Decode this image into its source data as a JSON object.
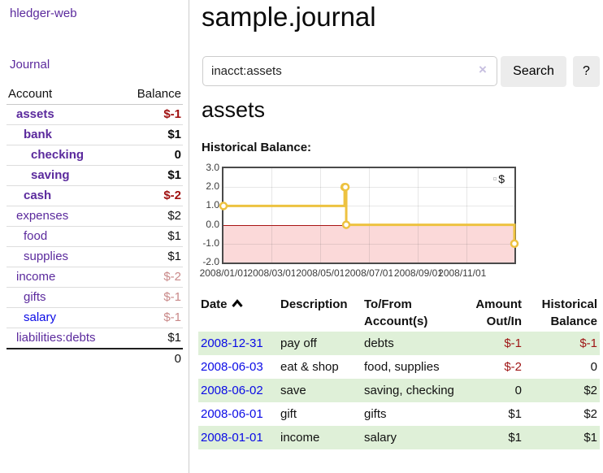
{
  "app_title": "hledger-web",
  "sidebar": {
    "journal_link": "Journal",
    "accounts": {
      "col_account": "Account",
      "col_balance": "Balance",
      "rows": [
        {
          "name": "assets",
          "balance": "$-1"
        },
        {
          "name": "bank",
          "balance": "$1"
        },
        {
          "name": "checking",
          "balance": "0"
        },
        {
          "name": "saving",
          "balance": "$1"
        },
        {
          "name": "cash",
          "balance": "$-2"
        },
        {
          "name": "expenses",
          "balance": "$2"
        },
        {
          "name": "food",
          "balance": "$1"
        },
        {
          "name": "supplies",
          "balance": "$1"
        },
        {
          "name": "income",
          "balance": "$-2"
        },
        {
          "name": "gifts",
          "balance": "$-1"
        },
        {
          "name": "salary",
          "balance": "$-1"
        },
        {
          "name": "liabilities:debts",
          "balance": "$1"
        }
      ],
      "total": "0"
    }
  },
  "main": {
    "title": "sample.journal",
    "search": {
      "value": "inacct:assets",
      "clear_glyph": "×",
      "search_button": "Search",
      "help_button": "?"
    },
    "account_heading": "assets",
    "section_label": "Historical Balance:"
  },
  "chart_data": {
    "type": "line",
    "step": true,
    "title": "Historical Balance",
    "series": [
      {
        "name": "$",
        "color": "#EDC240",
        "points": [
          [
            "2008-01-01",
            1
          ],
          [
            "2008-06-01",
            2
          ],
          [
            "2008-06-02",
            2
          ],
          [
            "2008-06-03",
            0
          ],
          [
            "2008-12-31",
            -1
          ]
        ]
      }
    ],
    "xlim": [
      "2008-01-01",
      "2008-12-31"
    ],
    "ylim": [
      -2,
      3
    ],
    "ytick_labels": [
      "3.0",
      "2.0",
      "1.0",
      "0.0",
      "-1.0",
      "-2.0"
    ],
    "xtick_labels": [
      "2008/01/01",
      "2008/03/01",
      "2008/05/01",
      "2008/07/01",
      "2008/09/01",
      "2008/11/01"
    ],
    "grid": true,
    "legend_position": "top-right",
    "negative_region_fill": "#fbd9d9",
    "zero_line_color": "#a91414"
  },
  "register": {
    "headers": {
      "date": "Date",
      "description": "Description",
      "accounts": "To/From Account(s)",
      "amount": "Amount Out/In",
      "balance": "Historical Balance"
    },
    "rows": [
      {
        "date": "2008-12-31",
        "description": "pay off",
        "accounts": "debts",
        "amount": "$-1",
        "balance": "$-1"
      },
      {
        "date": "2008-06-03",
        "description": "eat & shop",
        "accounts": "food, supplies",
        "amount": "$-2",
        "balance": "0"
      },
      {
        "date": "2008-06-02",
        "description": "save",
        "accounts": "saving, checking",
        "amount": "0",
        "balance": "$2"
      },
      {
        "date": "2008-06-01",
        "description": "gift",
        "accounts": "gifts",
        "amount": "$1",
        "balance": "$2"
      },
      {
        "date": "2008-01-01",
        "description": "income",
        "accounts": "salary",
        "amount": "$1",
        "balance": "$1"
      }
    ]
  }
}
